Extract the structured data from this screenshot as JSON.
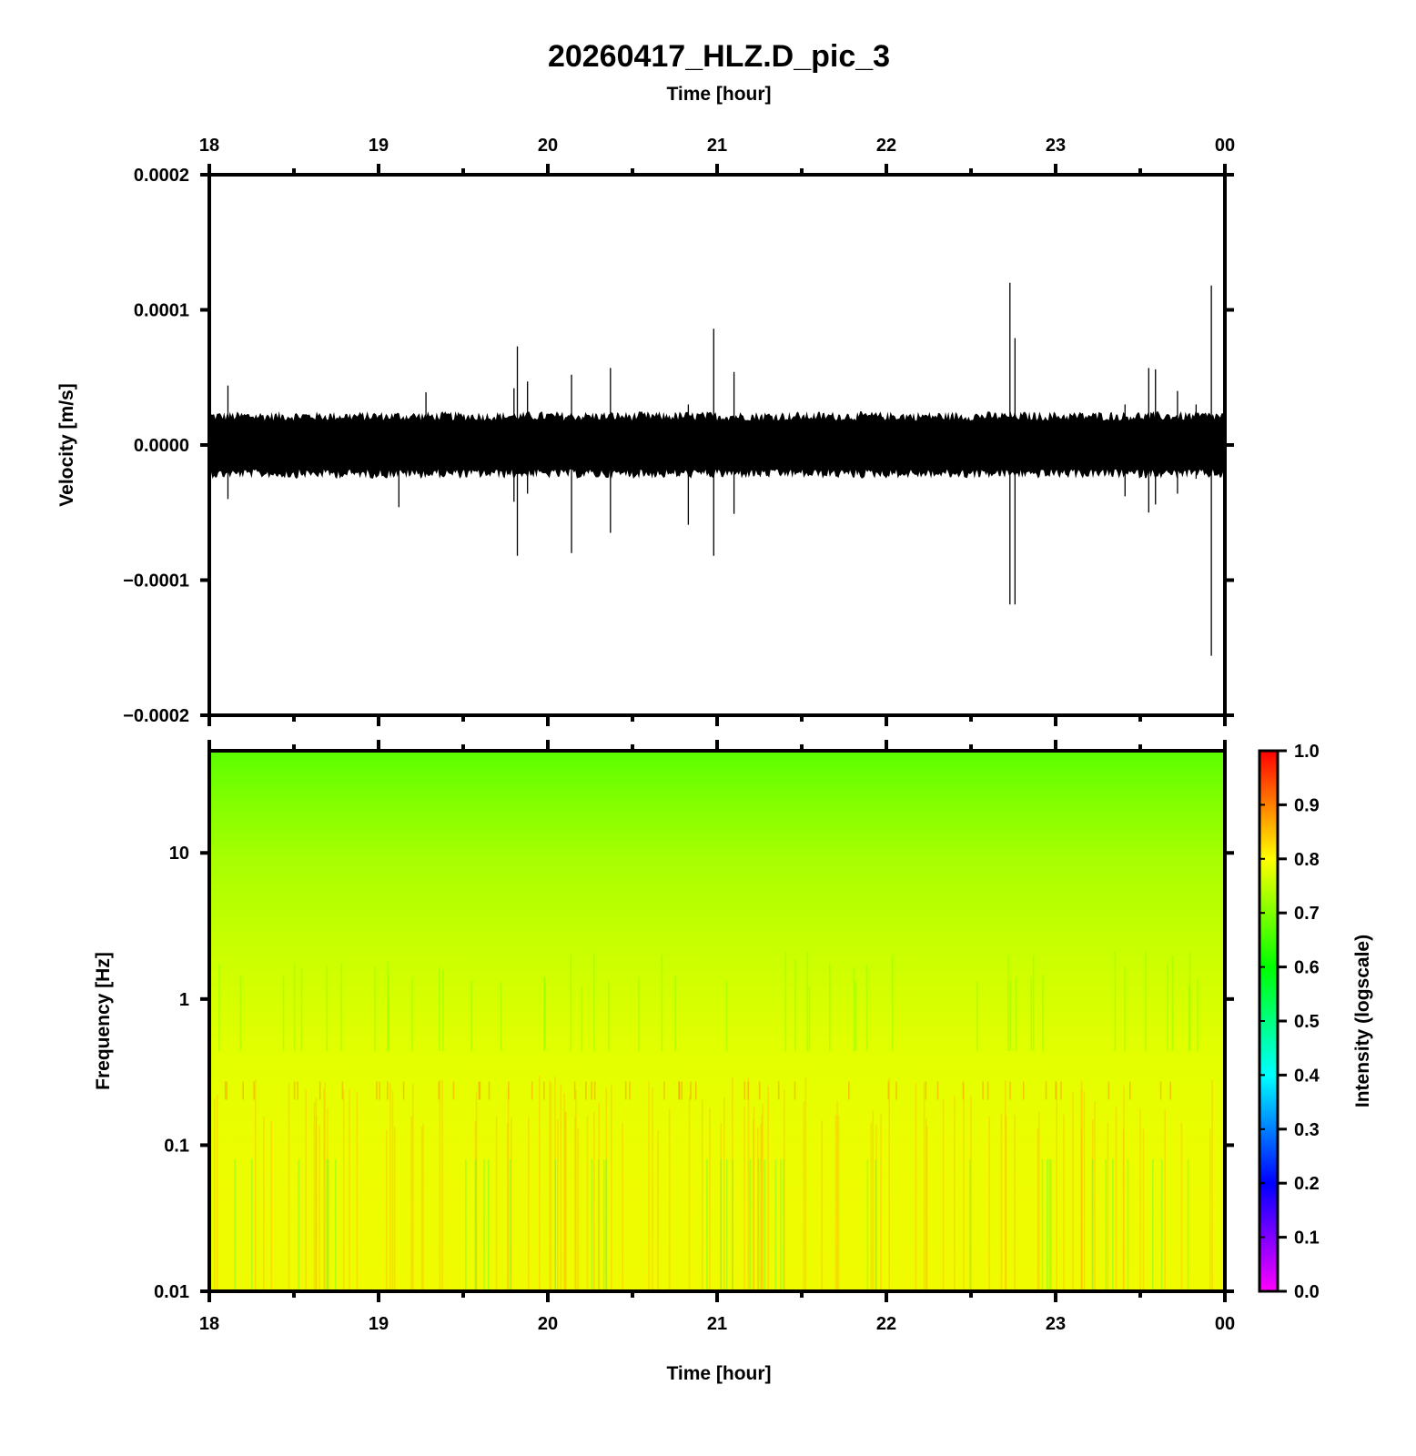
{
  "chart_data": [
    {
      "type": "line",
      "title": "20260417_HLZ.D_pic_3",
      "top_xlabel": "Time [hour]",
      "ylabel": "Velocity [m/s]",
      "xlim": [
        18,
        24
      ],
      "ylim": [
        -0.0002,
        0.0002
      ],
      "x_ticks": [
        "18",
        "19",
        "20",
        "21",
        "22",
        "23",
        "00"
      ],
      "y_ticks": [
        "0.0002",
        "0.0001",
        "0.0000",
        "−0.0001",
        "−0.0002"
      ],
      "noise_band": {
        "min": -2.5e-05,
        "max": 2.5e-05
      },
      "spikes": [
        {
          "x": 18.11,
          "y_max": 4.4e-05,
          "y_min": -4e-05
        },
        {
          "x": 19.12,
          "y_max": 1e-05,
          "y_min": -4.6e-05
        },
        {
          "x": 19.28,
          "y_max": 3.9e-05,
          "y_min": -1e-05
        },
        {
          "x": 19.8,
          "y_max": 4.2e-05,
          "y_min": -4.2e-05
        },
        {
          "x": 19.82,
          "y_max": 7.3e-05,
          "y_min": -8.2e-05
        },
        {
          "x": 19.88,
          "y_max": 4.7e-05,
          "y_min": -3.6e-05
        },
        {
          "x": 20.14,
          "y_max": 5.2e-05,
          "y_min": -8e-05
        },
        {
          "x": 20.37,
          "y_max": 5.7e-05,
          "y_min": -6.5e-05
        },
        {
          "x": 20.83,
          "y_max": 3e-05,
          "y_min": -5.9e-05
        },
        {
          "x": 20.98,
          "y_max": 8.6e-05,
          "y_min": -8.2e-05
        },
        {
          "x": 21.1,
          "y_max": 5.4e-05,
          "y_min": -5.1e-05
        },
        {
          "x": 22.73,
          "y_max": 0.00012,
          "y_min": -0.000118
        },
        {
          "x": 22.76,
          "y_max": 7.9e-05,
          "y_min": -0.000118
        },
        {
          "x": 23.41,
          "y_max": 3e-05,
          "y_min": -3.8e-05
        },
        {
          "x": 23.55,
          "y_max": 5.7e-05,
          "y_min": -5e-05
        },
        {
          "x": 23.59,
          "y_max": 5.6e-05,
          "y_min": -4.4e-05
        },
        {
          "x": 23.72,
          "y_max": 4e-05,
          "y_min": -3.6e-05
        },
        {
          "x": 23.83,
          "y_max": 3e-05,
          "y_min": -2.5e-05
        },
        {
          "x": 23.92,
          "y_max": 0.000118,
          "y_min": -0.000156
        }
      ]
    },
    {
      "type": "heatmap",
      "xlabel": "Time [hour]",
      "ylabel": "Frequency [Hz]",
      "xlim": [
        18,
        24
      ],
      "ylim": [
        0.01,
        50
      ],
      "y_scale": "log",
      "x_ticks": [
        "18",
        "19",
        "20",
        "21",
        "22",
        "23",
        "00"
      ],
      "y_ticks": [
        "10",
        "1",
        "0.1",
        "0.01"
      ],
      "colorbar": {
        "label": "Intensity (logscale)",
        "range": [
          0.0,
          1.0
        ],
        "ticks": [
          "1.0",
          "0.9",
          "0.8",
          "0.7",
          "0.6",
          "0.5",
          "0.4",
          "0.3",
          "0.2",
          "0.1",
          "0.0"
        ],
        "colors": [
          "#ff00ff",
          "#0000ff",
          "#00ffff",
          "#00ff00",
          "#ffff00",
          "#ff0000"
        ]
      },
      "intensity_profile": [
        {
          "freq": 50,
          "intensity": 0.62
        },
        {
          "freq": 10,
          "intensity": 0.7
        },
        {
          "freq": 1,
          "intensity": 0.76
        },
        {
          "freq": 0.2,
          "intensity": 0.79
        },
        {
          "freq": 0.01,
          "intensity": 0.8
        }
      ]
    }
  ]
}
